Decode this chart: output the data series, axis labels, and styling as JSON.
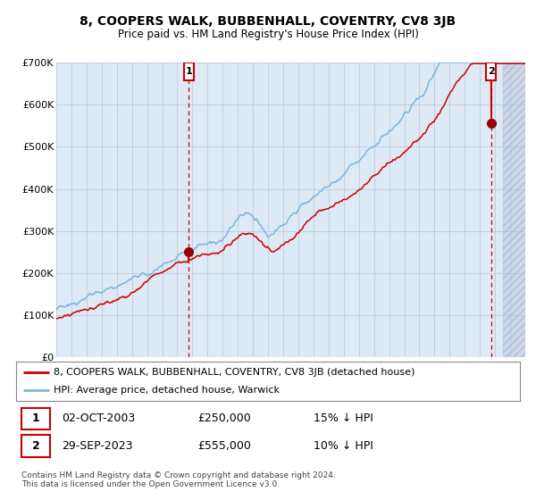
{
  "title": "8, COOPERS WALK, BUBBENHALL, COVENTRY, CV8 3JB",
  "subtitle": "Price paid vs. HM Land Registry's House Price Index (HPI)",
  "x_start_year": 1995,
  "x_end_year": 2026,
  "y_min": 0,
  "y_max": 700000,
  "y_ticks": [
    0,
    100000,
    200000,
    300000,
    400000,
    500000,
    600000,
    700000
  ],
  "y_tick_labels": [
    "£0",
    "£100K",
    "£200K",
    "£300K",
    "£400K",
    "£500K",
    "£600K",
    "£700K"
  ],
  "sale1_date": 2003.75,
  "sale1_price": 250000,
  "sale1_label": "1",
  "sale1_text": "02-OCT-2003",
  "sale1_price_str": "£250,000",
  "sale1_rel": "15% ↓ HPI",
  "sale2_date": 2023.75,
  "sale2_price": 555000,
  "sale2_label": "2",
  "sale2_text": "29-SEP-2023",
  "sale2_price_str": "£555,000",
  "sale2_rel": "10% ↓ HPI",
  "hpi_line_color": "#7ab8e0",
  "price_line_color": "#cc0000",
  "dot_color": "#990000",
  "vline_color": "#cc0000",
  "bg_color": "#ddeaf5",
  "future_bg_color": "#ccd8ea",
  "grid_color": "#b0bcd0",
  "legend_line1": "8, COOPERS WALK, BUBBENHALL, COVENTRY, CV8 3JB (detached house)",
  "legend_line2": "HPI: Average price, detached house, Warwick",
  "footer": "Contains HM Land Registry data © Crown copyright and database right 2024.\nThis data is licensed under the Open Government Licence v3.0."
}
